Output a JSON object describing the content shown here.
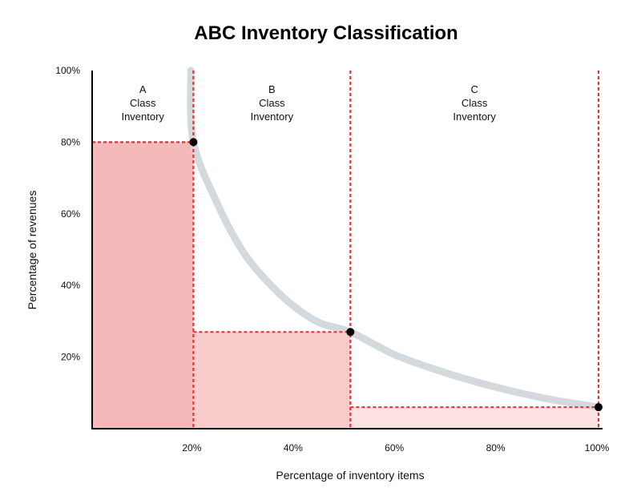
{
  "chart_data": {
    "type": "area",
    "title": "ABC Inventory Classification",
    "xlabel": "Percentage of inventory items",
    "ylabel": "Percentage of revenues",
    "xlim": [
      0,
      100
    ],
    "ylim": [
      0,
      100
    ],
    "x_ticks": [
      {
        "value": 20,
        "label": "20%"
      },
      {
        "value": 40,
        "label": "40%"
      },
      {
        "value": 60,
        "label": "60%"
      },
      {
        "value": 80,
        "label": "80%"
      },
      {
        "value": 100,
        "label": "100%"
      }
    ],
    "y_ticks": [
      {
        "value": 20,
        "label": "20%"
      },
      {
        "value": 40,
        "label": "40%"
      },
      {
        "value": 60,
        "label": "60%"
      },
      {
        "value": 80,
        "label": "80%"
      },
      {
        "value": 100,
        "label": "100%"
      }
    ],
    "classes": [
      {
        "letter": "A",
        "line2": "Class",
        "line3": "Inventory",
        "x_start": 0,
        "x_end": 20,
        "revenue": 80,
        "color": "#f6b9b9"
      },
      {
        "letter": "B",
        "line2": "Class",
        "line3": "Inventory",
        "x_start": 20,
        "x_end": 51,
        "revenue": 27,
        "color": "#f9cccc"
      },
      {
        "letter": "C",
        "line2": "Class",
        "line3": "Inventory",
        "x_start": 51,
        "x_end": 100,
        "revenue": 6,
        "color": "#fde2e2"
      }
    ],
    "curve": [
      [
        19.5,
        100
      ],
      [
        20,
        80
      ],
      [
        25,
        62
      ],
      [
        30,
        49
      ],
      [
        35,
        40.5
      ],
      [
        40,
        34
      ],
      [
        45,
        29.5
      ],
      [
        51,
        27
      ],
      [
        60,
        20.5
      ],
      [
        70,
        15.5
      ],
      [
        80,
        11.5
      ],
      [
        90,
        8.3
      ],
      [
        100,
        6
      ]
    ],
    "key_points": [
      {
        "x": 20,
        "y": 80
      },
      {
        "x": 51,
        "y": 27
      },
      {
        "x": 100,
        "y": 6
      }
    ],
    "colors": {
      "divider": "#e0343c",
      "curve": "#d3d9dc",
      "point": "#000000",
      "axis": "#000000"
    }
  }
}
